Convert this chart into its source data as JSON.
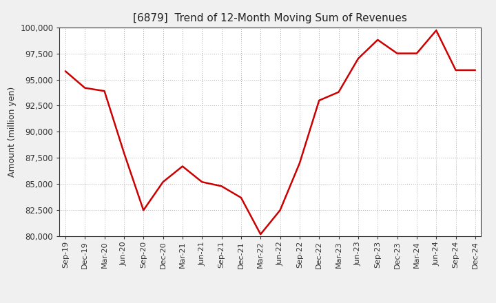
{
  "title": "[6879]  Trend of 12-Month Moving Sum of Revenues",
  "ylabel": "Amount (million yen)",
  "line_color": "#cc0000",
  "background_color": "#f0f0f0",
  "plot_bg_color": "#ffffff",
  "grid_color": "#aaaaaa",
  "ylim": [
    80000,
    100000
  ],
  "yticks": [
    80000,
    82500,
    85000,
    87500,
    90000,
    92500,
    95000,
    97500,
    100000
  ],
  "x_labels": [
    "Sep-19",
    "Dec-19",
    "Mar-20",
    "Jun-20",
    "Sep-20",
    "Dec-20",
    "Mar-21",
    "Jun-21",
    "Sep-21",
    "Dec-21",
    "Mar-22",
    "Jun-22",
    "Sep-22",
    "Dec-22",
    "Mar-23",
    "Jun-23",
    "Sep-23",
    "Dec-23",
    "Mar-24",
    "Jun-24",
    "Sep-24",
    "Dec-24"
  ],
  "values": [
    95800,
    94200,
    93900,
    88000,
    82500,
    85200,
    86700,
    85200,
    84800,
    83700,
    80200,
    82500,
    87000,
    93000,
    93800,
    97000,
    98800,
    97500,
    97500,
    99700,
    95900,
    95900
  ]
}
